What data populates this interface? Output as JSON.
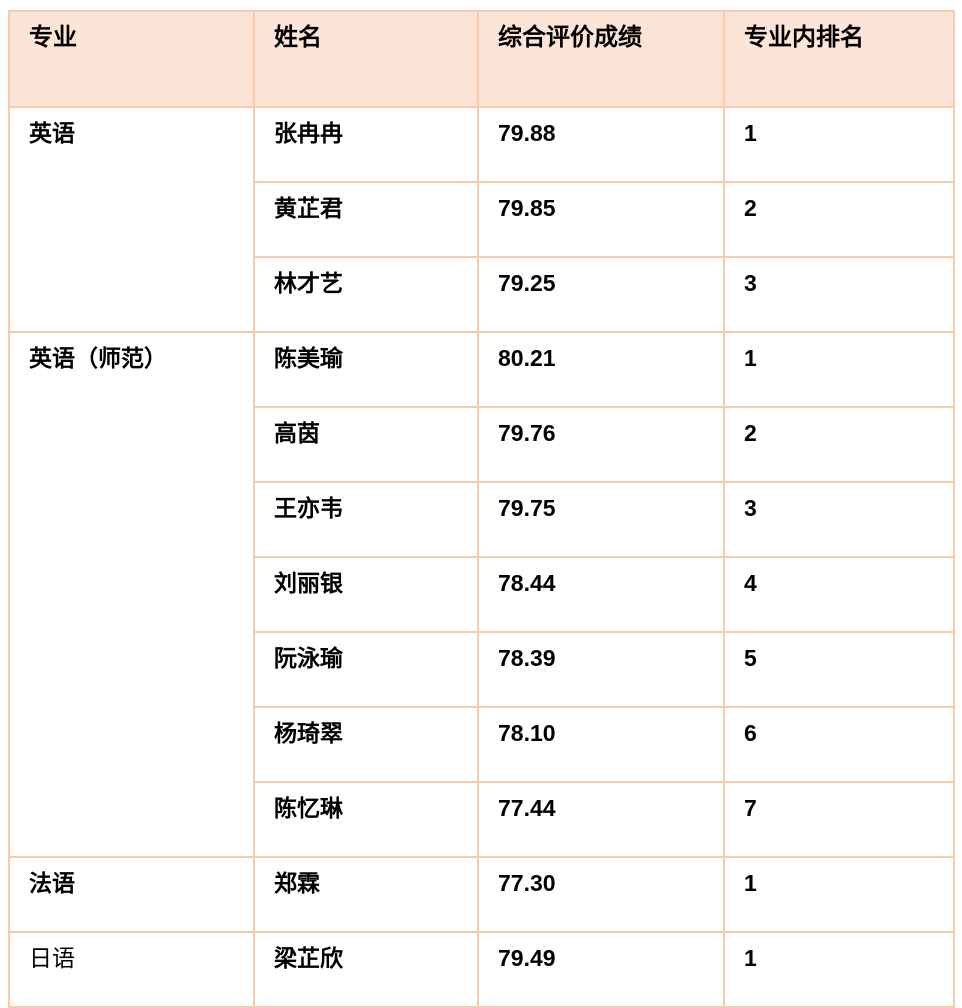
{
  "table": {
    "headers": [
      "专业",
      "姓名",
      "综合评价成绩",
      "专业内排名"
    ],
    "groups": [
      {
        "major": "英语",
        "major_bold": true,
        "students": [
          {
            "name": "张冉冉",
            "score": "79.88",
            "rank": "1"
          },
          {
            "name": "黄芷君",
            "score": "79.85",
            "rank": "2"
          },
          {
            "name": "林才艺",
            "score": "79.25",
            "rank": "3"
          }
        ]
      },
      {
        "major": "英语（师范）",
        "major_bold": true,
        "students": [
          {
            "name": "陈美瑜",
            "score": "80.21",
            "rank": "1"
          },
          {
            "name": "高茵",
            "score": "79.76",
            "rank": "2"
          },
          {
            "name": "王亦韦",
            "score": "79.75",
            "rank": "3"
          },
          {
            "name": "刘丽银",
            "score": "78.44",
            "rank": "4"
          },
          {
            "name": "阮泳瑜",
            "score": "78.39",
            "rank": "5"
          },
          {
            "name": "杨琦翠",
            "score": "78.10",
            "rank": "6"
          },
          {
            "name": "陈忆琳",
            "score": "77.44",
            "rank": "7"
          }
        ]
      },
      {
        "major": "法语",
        "major_bold": true,
        "students": [
          {
            "name": "郑霖",
            "score": "77.30",
            "rank": "1"
          }
        ]
      },
      {
        "major": "日语",
        "major_bold": false,
        "students": [
          {
            "name": "梁芷欣",
            "score": "79.49",
            "rank": "1"
          }
        ]
      }
    ],
    "colors": {
      "header_bg": "#fce4d6",
      "border": "#f8cbad",
      "text": "#000000",
      "page_bg": "#ffffff"
    }
  }
}
